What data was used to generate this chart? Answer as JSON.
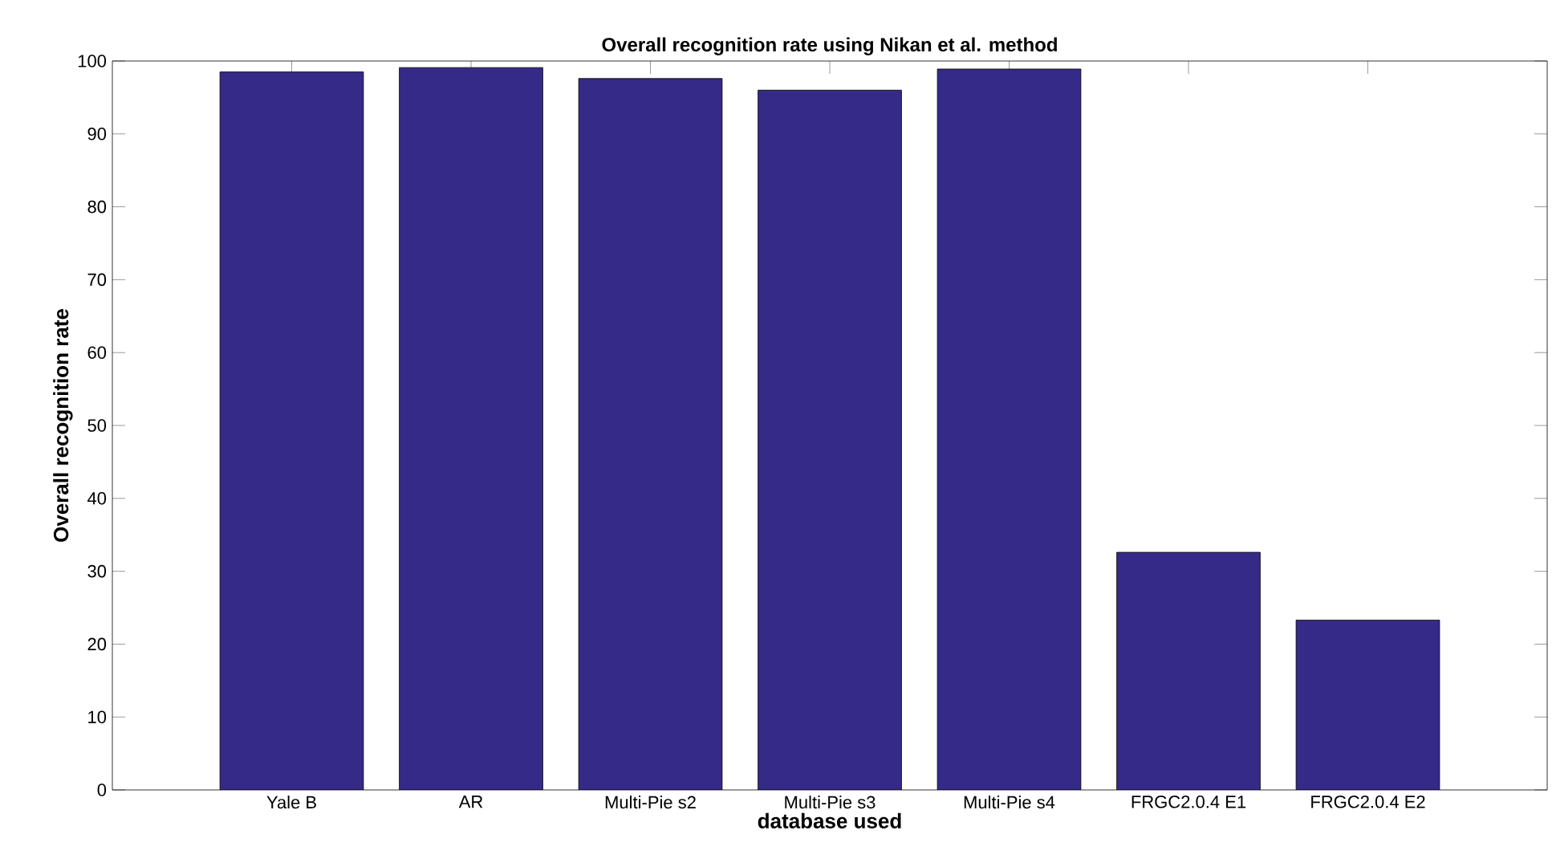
{
  "chart_data": {
    "type": "bar",
    "title": "Overall recognition rate using Nikan et al. method",
    "xlabel": "database used",
    "ylabel": "Overall recognition rate",
    "categories": [
      "Yale B",
      "AR",
      "Multi-Pie s2",
      "Multi-Pie s3",
      "Multi-Pie s4",
      "FRGC2.0.4 E1",
      "FRGC2.0.4 E2"
    ],
    "values": [
      98.5,
      99.1,
      97.6,
      96.0,
      98.9,
      32.6,
      23.3
    ],
    "color": "#352a87",
    "ylim": [
      0,
      100
    ],
    "yticks": [
      0,
      10,
      20,
      30,
      40,
      50,
      60,
      70,
      80,
      90,
      100
    ],
    "grid": false
  }
}
